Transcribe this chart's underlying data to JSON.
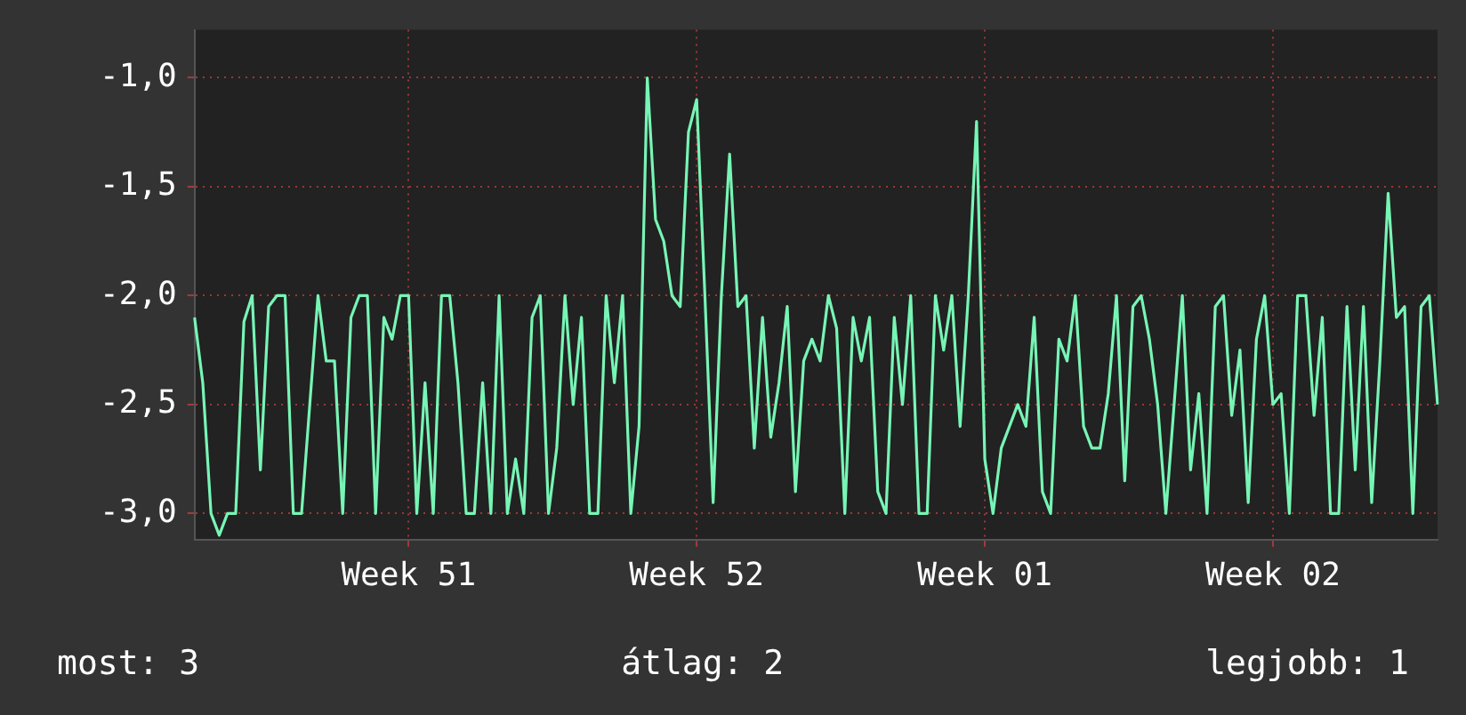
{
  "chart_data": {
    "type": "line",
    "categories": [
      null,
      null,
      null,
      null,
      null,
      null,
      null,
      null,
      null,
      null,
      null,
      null,
      null,
      null,
      null,
      null,
      null,
      null,
      null,
      null,
      null,
      null,
      null,
      null,
      null,
      null,
      "Week 51",
      null,
      null,
      null,
      null,
      null,
      null,
      null,
      null,
      null,
      null,
      null,
      null,
      null,
      null,
      null,
      null,
      null,
      null,
      null,
      null,
      null,
      null,
      null,
      null,
      null,
      null,
      null,
      null,
      null,
      null,
      null,
      null,
      null,
      null,
      "Week 52",
      null,
      null,
      null,
      null,
      null,
      null,
      null,
      null,
      null,
      null,
      null,
      null,
      null,
      null,
      null,
      null,
      null,
      null,
      null,
      null,
      null,
      null,
      null,
      null,
      null,
      null,
      null,
      null,
      null,
      null,
      null,
      null,
      null,
      null,
      "Week 01",
      null,
      null,
      null,
      null,
      null,
      null,
      null,
      null,
      null,
      null,
      null,
      null,
      null,
      null,
      null,
      null,
      null,
      null,
      null,
      null,
      null,
      null,
      null,
      null,
      null,
      null,
      null,
      null,
      null,
      null,
      null,
      null,
      null,
      null,
      "Week 02",
      null,
      null,
      null,
      null,
      null,
      null,
      null,
      null,
      null,
      null,
      null,
      null,
      null,
      null,
      null,
      null,
      null,
      null,
      null,
      null
    ],
    "series": [
      {
        "color": "#77f5b5",
        "values": [
          -2.1,
          -2.4,
          -3.0,
          -3.1,
          -3.0,
          -3.0,
          -2.12,
          -2.0,
          -2.8,
          -2.05,
          -2.0,
          -2.0,
          -3.0,
          -3.0,
          -2.5,
          -2.0,
          -2.3,
          -2.3,
          -3.0,
          -2.1,
          -2.0,
          -2.0,
          -3.0,
          -2.1,
          -2.2,
          -2.0,
          -2.0,
          -3.0,
          -2.4,
          -3.0,
          -2.0,
          -2.0,
          -2.4,
          -3.0,
          -3.0,
          -2.4,
          -3.0,
          -2.0,
          -3.0,
          -2.75,
          -3.0,
          -2.1,
          -2.0,
          -3.0,
          -2.7,
          -2.0,
          -2.5,
          -2.1,
          -3.0,
          -3.0,
          -2.0,
          -2.4,
          -2.0,
          -3.0,
          -2.6,
          -1.0,
          -1.65,
          -1.75,
          -2.0,
          -2.05,
          -1.25,
          -1.1,
          -2.0,
          -2.95,
          -2.0,
          -1.35,
          -2.05,
          -2.0,
          -2.7,
          -2.1,
          -2.65,
          -2.4,
          -2.05,
          -2.9,
          -2.3,
          -2.2,
          -2.3,
          -2.0,
          -2.15,
          -3.0,
          -2.1,
          -2.3,
          -2.1,
          -2.9,
          -3.0,
          -2.1,
          -2.5,
          -2.0,
          -3.0,
          -3.0,
          -2.0,
          -2.25,
          -2.0,
          -2.6,
          -2.0,
          -1.2,
          -2.75,
          -3.0,
          -2.7,
          -2.6,
          -2.5,
          -2.6,
          -2.1,
          -2.9,
          -3.0,
          -2.2,
          -2.3,
          -2.0,
          -2.6,
          -2.7,
          -2.7,
          -2.45,
          -2.0,
          -2.85,
          -2.05,
          -2.0,
          -2.2,
          -2.5,
          -3.0,
          -2.5,
          -2.0,
          -2.8,
          -2.45,
          -3.0,
          -2.05,
          -2.0,
          -2.55,
          -2.25,
          -2.95,
          -2.2,
          -2.0,
          -2.5,
          -2.45,
          -3.0,
          -2.0,
          -2.0,
          -2.55,
          -2.1,
          -3.0,
          -3.0,
          -2.05,
          -2.8,
          -2.05,
          -2.95,
          -2.3,
          -1.53,
          -2.1,
          -2.05,
          -3.0,
          -2.05,
          -2.0,
          -2.5
        ]
      }
    ],
    "ylim": [
      -3.12,
      -0.78
    ],
    "yticks": [
      {
        "value": -3,
        "label": "-3,0"
      },
      {
        "value": -2.5,
        "label": "-2,5"
      },
      {
        "value": -2,
        "label": "-2,0"
      },
      {
        "value": -1.5,
        "label": "-1,5"
      },
      {
        "value": -1,
        "label": "-1,0"
      }
    ],
    "grid": true,
    "legend": false,
    "marker": "none",
    "line_style": "solid",
    "annotations": [
      "most: 3",
      "átlag: 2",
      "legjobb: 1"
    ]
  }
}
